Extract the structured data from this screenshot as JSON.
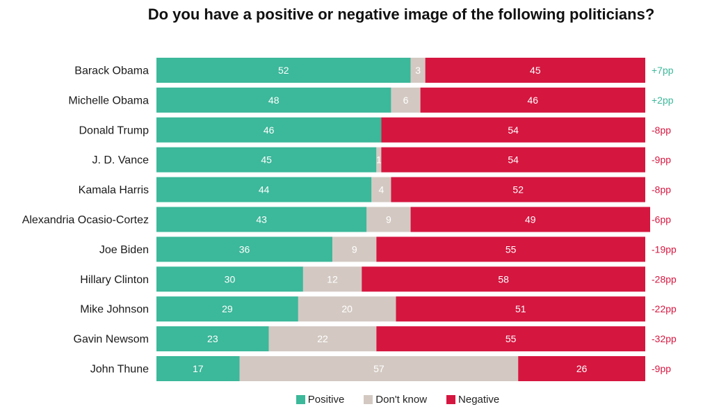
{
  "chart_data": {
    "type": "bar",
    "orientation": "horizontal",
    "stacked": true,
    "title": "Do you have a positive or negative image of the following politicians?",
    "categories": [
      "Barack Obama",
      "Michelle Obama",
      "Donald Trump",
      "J. D. Vance",
      "Kamala Harris",
      "Alexandria Ocasio-Cortez",
      "Joe Biden",
      "Hillary Clinton",
      "Mike Johnson",
      "Gavin Newsom",
      "John Thune"
    ],
    "series": [
      {
        "name": "Positive",
        "color": "#3cb89a",
        "values": [
          52,
          48,
          46,
          45,
          44,
          43,
          36,
          30,
          29,
          23,
          17
        ]
      },
      {
        "name": "Don't know",
        "color": "#d3c9c2",
        "values": [
          3,
          6,
          0,
          1,
          4,
          9,
          9,
          12,
          20,
          22,
          57
        ]
      },
      {
        "name": "Negative",
        "color": "#d5163f",
        "values": [
          45,
          46,
          54,
          54,
          52,
          49,
          55,
          58,
          51,
          55,
          26
        ]
      }
    ],
    "net_labels": [
      "+7pp",
      "+2pp",
      "-8pp",
      "-9pp",
      "-8pp",
      "-6pp",
      "-19pp",
      "-28pp",
      "-22pp",
      "-32pp",
      "-9pp"
    ],
    "net_colors": {
      "positive": "#3cb89a",
      "negative": "#d5163f"
    },
    "xlim": [
      0,
      100
    ],
    "grid": false,
    "legend_position": "bottom-center"
  },
  "legend": {
    "positive_label": "Positive",
    "dontknow_label": "Don't know",
    "negative_label": "Negative"
  }
}
